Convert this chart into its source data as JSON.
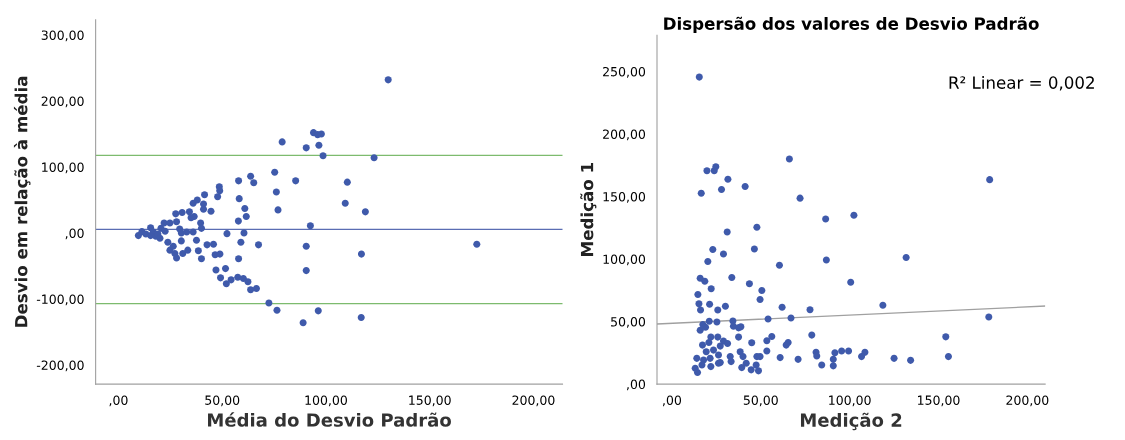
{
  "chart_data": [
    {
      "type": "scatter",
      "xlabel": "Média do Desvio Padrão",
      "ylabel": "Desvio em relação à média",
      "xlim": [
        -11,
        214
      ],
      "ylim": [
        -229,
        323
      ],
      "xticks": [
        {
          "value": 0,
          "label": ",00"
        },
        {
          "value": 50,
          "label": "50,00"
        },
        {
          "value": 100,
          "label": "100,00"
        },
        {
          "value": 150,
          "label": "150,00"
        },
        {
          "value": 200,
          "label": "200,00"
        }
      ],
      "yticks": [
        {
          "value": -200,
          "label": "-200,00"
        },
        {
          "value": -100,
          "label": "-100,00"
        },
        {
          "value": 0,
          "label": ",00"
        },
        {
          "value": 100,
          "label": "100,00"
        },
        {
          "value": 200,
          "label": "200,00"
        },
        {
          "value": 300,
          "label": "300,00"
        }
      ],
      "grid": false,
      "marker": "circle",
      "ref_lines": [
        {
          "axis": "y",
          "value": 5.5,
          "color": "#5a6db3"
        },
        {
          "axis": "y",
          "value": 117.5,
          "color": "#7dbb6e"
        },
        {
          "axis": "y",
          "value": -107,
          "color": "#7dbb6e"
        }
      ],
      "series": [
        {
          "color": "#3f5aab",
          "x": [
            9.6,
            11.3,
            13.2,
            15.5,
            15.5,
            16.8,
            18,
            19,
            20.5,
            20,
            22,
            22.5,
            23.8,
            24.8,
            24.8,
            26.4,
            27.2,
            28,
            27.6,
            28,
            29.5,
            30.3,
            30.7,
            30.3,
            31,
            32.9,
            33.4,
            34.2,
            35,
            36,
            36.5,
            38,
            36,
            37.6,
            38.5,
            39.6,
            40,
            40,
            41,
            41,
            41.5,
            44.6,
            42.7,
            45.8,
            46.6,
            47,
            48.9,
            47.8,
            48.6,
            48.8,
            49.2,
            51.6,
            52.3,
            52,
            54.3,
            57.5,
            57.9,
            57.8,
            57.9,
            58.2,
            59,
            60.2,
            60.5,
            60.9,
            61.6,
            62.4,
            63.7,
            63.7,
            65.2,
            66.5,
            67.5,
            72.5,
            75.3,
            76.1,
            76.9,
            76.4,
            78.9,
            85.4,
            89,
            90.5,
            90.5,
            90.5,
            92.5,
            94,
            96,
            97.8,
            96.6,
            96.3,
            98.6,
            130,
            110.3,
            109.3,
            119,
            123.2,
            117.1,
            117,
            172.7
          ],
          "values": [
            -4,
            2,
            -1.5,
            8,
            -4,
            1.5,
            -5,
            -1.5,
            7,
            -8,
            15,
            2.5,
            -14,
            15,
            -26,
            -20,
            -31,
            -38,
            29,
            17,
            6,
            0,
            31,
            -12,
            -31,
            1.5,
            -26,
            32,
            23,
            45,
            25,
            50,
            1.5,
            -11,
            -27,
            15,
            7,
            -39,
            44,
            36,
            58,
            33,
            -18,
            -17,
            -33,
            -56,
            -32,
            55,
            70,
            64,
            -68,
            -54,
            -1,
            -77,
            -71,
            -67,
            -39,
            18,
            79,
            52,
            -14,
            -69,
            0,
            37,
            25,
            -74,
            86,
            -86,
            76,
            -84,
            -18,
            -106,
            92,
            62,
            35,
            -117,
            138,
            79,
            -136,
            129,
            -20,
            -57,
            11,
            152,
            149,
            150,
            133,
            -118,
            117,
            232,
            77,
            45,
            32,
            114,
            -32,
            -128,
            -17
          ]
        }
      ]
    },
    {
      "type": "scatter",
      "title": "Dispersão dos valores de Desvio Padrão",
      "xlabel": "Medição 2",
      "ylabel": "Medição 1",
      "xlim": [
        -8.4,
        210
      ],
      "ylim": [
        0,
        279
      ],
      "xticks": [
        {
          "value": 0,
          "label": ",00"
        },
        {
          "value": 50,
          "label": "50,00"
        },
        {
          "value": 100,
          "label": "100,00"
        },
        {
          "value": 150,
          "label": "150,00"
        },
        {
          "value": 200,
          "label": "200,00"
        }
      ],
      "yticks": [
        {
          "value": 0,
          "label": ",00"
        },
        {
          "value": 50,
          "label": "50,00"
        },
        {
          "value": 100,
          "label": "100,00"
        },
        {
          "value": 150,
          "label": "150,00"
        },
        {
          "value": 200,
          "label": "200,00"
        },
        {
          "value": 250,
          "label": "250,00"
        }
      ],
      "grid": false,
      "marker": "circle",
      "annotations": [
        "R² Linear = 0,002"
      ],
      "series": [
        {
          "color": "#3f5aab",
          "x": [
            15.4,
            19.7,
            23.8,
            24.7,
            31.5,
            16.5,
            27.9,
            41.2,
            66.1,
            72.1,
            86.5,
            102.4,
            31.1,
            47.8,
            23,
            46.4,
            29,
            20.2,
            60.5,
            86.9,
            15.9,
            18.5,
            33.7,
            22.1,
            43.6,
            100.6,
            14.6,
            50.6,
            49.6,
            15.2,
            21.2,
            30.1,
            62,
            16.1,
            25.8,
            77.7,
            54.1,
            67,
            21,
            25.3,
            34.3,
            15.9,
            17.4,
            18.9,
            34.6,
            37.5,
            38.8,
            78.7,
            56.2,
            17.2,
            20.8,
            21.9,
            25.8,
            29,
            37.5,
            53.4,
            44.9,
            65.4,
            64.3,
            19.3,
            23.4,
            27.2,
            31.3,
            38.4,
            53.4,
            14,
            17.8,
            21.5,
            26.2,
            27.2,
            32.8,
            40,
            47.8,
            49.6,
            60.9,
            13.1,
            14.4,
            16.9,
            21.9,
            26.2,
            33.3,
            39.3,
            41.8,
            44.6,
            47.4,
            48.7,
            71,
            81.1,
            81.5,
            84.3,
            90.8,
            90.8,
            91.7,
            95.5,
            99.4,
            106.7,
            108.6,
            178.8,
            131.8,
            118.7,
            178.3,
            154.1,
            155.6,
            125,
            134.3
          ],
          "values": [
            245.5,
            170.6,
            170.6,
            173.8,
            163.8,
            152.6,
            155.6,
            158,
            180,
            148.7,
            132,
            135,
            121.7,
            125.4,
            107.7,
            108,
            104,
            98,
            95,
            99.2,
            84.7,
            82.3,
            85.2,
            76.2,
            80.2,
            81.5,
            71.7,
            74.9,
            67.7,
            64.3,
            63.8,
            62.2,
            61.4,
            59.3,
            59.3,
            59.5,
            52.1,
            52.9,
            50.3,
            49.7,
            50.5,
            43.1,
            47.6,
            45.5,
            46.3,
            45,
            45.8,
            39.2,
            38.1,
            31.2,
            33.3,
            37.6,
            37.6,
            34.4,
            37.6,
            34.7,
            33.1,
            33.3,
            31.2,
            25.9,
            27.2,
            30.4,
            32.5,
            25.9,
            26.5,
            20.6,
            19.3,
            20.6,
            23.3,
            17.2,
            22,
            22,
            22,
            22,
            21.2,
            12.7,
            9.3,
            15.3,
            14,
            16.7,
            18,
            13.2,
            16.7,
            11.4,
            15.3,
            10.6,
            19.8,
            25.4,
            22.5,
            15.3,
            19.8,
            14.6,
            25.1,
            26.5,
            26.5,
            22,
            25.4,
            163.5,
            101.3,
            63,
            53.7,
            37.8,
            22,
            20.6,
            19
          ]
        },
        {
          "type": "line",
          "color": "#a0a0a0",
          "marker": "none",
          "x": [
            -8.4,
            210
          ],
          "values": [
            48.1,
            62.4
          ]
        }
      ]
    }
  ]
}
